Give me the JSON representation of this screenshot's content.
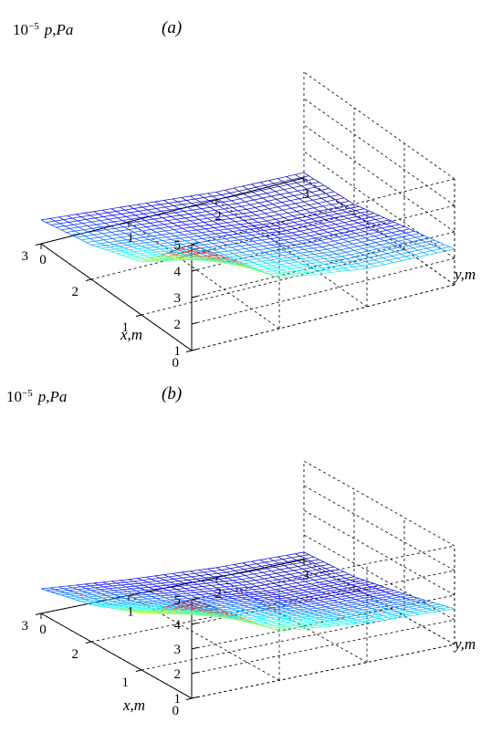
{
  "chart_data": [
    {
      "type": "surface",
      "panel_label": "(a)",
      "zlabel_prefix": "10",
      "zlabel_exp": "−5",
      "zlabel": "p,Pa",
      "xlabel": "x,m",
      "ylabel": "y,m",
      "x_ticks": [
        "0",
        "1",
        "2",
        "3"
      ],
      "y_ticks": [
        "0",
        "1",
        "2",
        "3"
      ],
      "z_ticks": [
        "1",
        "2",
        "3",
        "4",
        "5"
      ],
      "xlim": [
        0,
        3
      ],
      "ylim": [
        0,
        3
      ],
      "zlim": [
        1,
        5
      ],
      "grid": true,
      "colormap": [
        "#00008f",
        "#0000ff",
        "#00ffff",
        "#ffff00",
        "#ff0000",
        "#800000"
      ],
      "x": [
        0,
        1,
        2,
        3
      ],
      "y": [
        0,
        1,
        2,
        3
      ],
      "z": [
        [
          5.0,
          2.9,
          2.45,
          2.35
        ],
        [
          3.0,
          2.35,
          2.0,
          1.85
        ],
        [
          2.3,
          1.95,
          1.55,
          1.35
        ],
        [
          1.9,
          1.6,
          1.3,
          1.2
        ]
      ]
    },
    {
      "type": "surface",
      "panel_label": "(b)",
      "zlabel_prefix": "10",
      "zlabel_exp": "−5",
      "zlabel": "p,Pa",
      "xlabel": "x,m",
      "ylabel": "y,m",
      "x_ticks": [
        "0",
        "1",
        "2",
        "3"
      ],
      "y_ticks": [
        "0",
        "1",
        "2",
        "3"
      ],
      "z_ticks": [
        "1",
        "2",
        "3",
        "4",
        "5"
      ],
      "xlim": [
        0,
        3
      ],
      "ylim": [
        0,
        3
      ],
      "zlim": [
        1,
        5
      ],
      "grid": true,
      "colormap": [
        "#00008f",
        "#0000ff",
        "#00ffff",
        "#ffff00",
        "#ff0000",
        "#800000"
      ],
      "x": [
        0,
        1,
        2,
        3
      ],
      "y": [
        0,
        1,
        2,
        3
      ],
      "z": [
        [
          5.0,
          3.0,
          2.6,
          2.45
        ],
        [
          3.3,
          2.5,
          2.05,
          1.9
        ],
        [
          2.5,
          2.0,
          1.6,
          1.45
        ],
        [
          2.0,
          1.65,
          1.4,
          1.3
        ]
      ]
    }
  ]
}
